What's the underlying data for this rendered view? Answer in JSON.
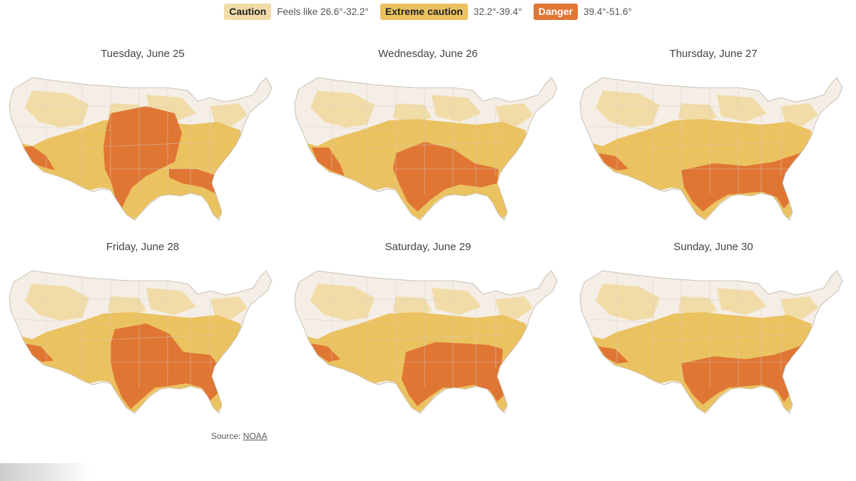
{
  "legend": [
    {
      "label": "Caution",
      "range": "Feels like 26.6°-32.2°",
      "color": "#f1dca8"
    },
    {
      "label": "Extreme caution",
      "range": "32.2°-39.4°",
      "color": "#ebc260"
    },
    {
      "label": "Danger",
      "range": "39.4°-51.6°",
      "color": "#e07634",
      "label_color": "#ffffff"
    }
  ],
  "maps": [
    {
      "title": "Tuesday, June 25",
      "danger": "central-heavy"
    },
    {
      "title": "Wednesday, June 26",
      "danger": "south-central"
    },
    {
      "title": "Thursday, June 27",
      "danger": "southeast"
    },
    {
      "title": "Friday, June 28",
      "danger": "central-south"
    },
    {
      "title": "Saturday, June 29",
      "danger": "south"
    },
    {
      "title": "Sunday, June 30",
      "danger": "southeast"
    }
  ],
  "source": {
    "prefix": "Source: ",
    "link": "NOAA"
  },
  "colors": {
    "base": "#f4eee6",
    "border": "#d4cdc4",
    "caution": "#f1dca8",
    "extreme": "#ebc260",
    "danger": "#e07634"
  }
}
